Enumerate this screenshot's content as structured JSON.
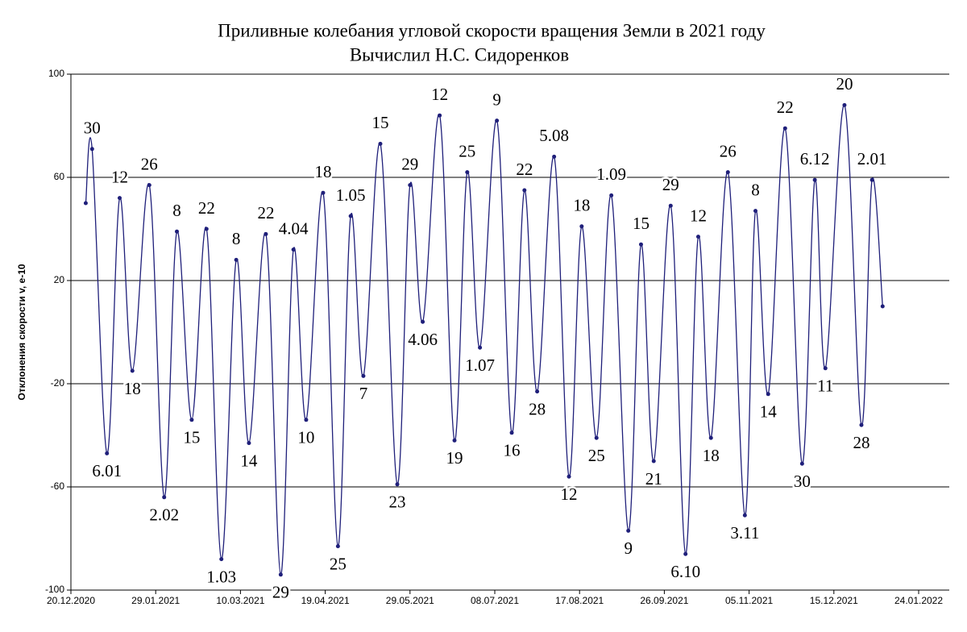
{
  "chart_data": {
    "type": "line",
    "title": "Приливные колебания угловой скорости вращения Земли в 2021 году",
    "subtitle": "Вычислил  Н.С. Сидоренков",
    "y_label": "Отклонения скорости v, е-10",
    "x": [
      "2020-12-27",
      "2020-12-30",
      "2021-01-06",
      "2021-01-12",
      "2021-01-18",
      "2021-01-26",
      "2021-02-02",
      "2021-02-08",
      "2021-02-15",
      "2021-02-22",
      "2021-03-01",
      "2021-03-08",
      "2021-03-14",
      "2021-03-22",
      "2021-03-29",
      "2021-04-04",
      "2021-04-10",
      "2021-04-18",
      "2021-04-25",
      "2021-05-01",
      "2021-05-07",
      "2021-05-15",
      "2021-05-23",
      "2021-05-29",
      "2021-06-04",
      "2021-06-12",
      "2021-06-19",
      "2021-06-25",
      "2021-07-01",
      "2021-07-09",
      "2021-07-16",
      "2021-07-22",
      "2021-07-28",
      "2021-08-05",
      "2021-08-12",
      "2021-08-18",
      "2021-08-25",
      "2021-09-01",
      "2021-09-09",
      "2021-09-15",
      "2021-09-21",
      "2021-09-29",
      "2021-10-06",
      "2021-10-12",
      "2021-10-18",
      "2021-10-26",
      "2021-11-03",
      "2021-11-08",
      "2021-11-14",
      "2021-11-22",
      "2021-11-30",
      "2021-12-06",
      "2021-12-11",
      "2021-12-20",
      "2021-12-28",
      "2022-01-02",
      "2022-01-07"
    ],
    "series": [
      {
        "name": "v",
        "color": "#1f1f7a",
        "values": [
          50,
          71,
          -47,
          52,
          -15,
          57,
          -64,
          39,
          -34,
          40,
          -88,
          28,
          -43,
          38,
          -94,
          32,
          -34,
          54,
          -83,
          45,
          -17,
          73,
          -59,
          57,
          4,
          84,
          -42,
          62,
          -6,
          82,
          -39,
          55,
          -23,
          68,
          -56,
          41,
          -41,
          53,
          -77,
          34,
          -50,
          49,
          -86,
          37,
          -41,
          62,
          -71,
          47,
          -24,
          79,
          -51,
          59,
          -14,
          88,
          -36,
          59,
          10
        ]
      }
    ],
    "point_labels": [
      null,
      "30",
      "6.01",
      "12",
      "18",
      "26",
      "2.02",
      "8",
      "15",
      "22",
      "1.03",
      "8",
      "14",
      "22",
      "29",
      "4.04",
      "10",
      "18",
      "25",
      "1.05",
      "7",
      "15",
      "23",
      "29",
      "4.06",
      "12",
      "19",
      "25",
      "1.07",
      "9",
      "16",
      "22",
      "28",
      "5.08",
      "12",
      "18",
      "25",
      "1.09",
      "9",
      "15",
      "21",
      "29",
      "6.10",
      "12",
      "18",
      "26",
      "3.11",
      "8",
      "14",
      "22",
      "30",
      "6.12",
      "11",
      "20",
      "28",
      "2.01",
      null
    ],
    "xlim": [
      "2020-12-20",
      "2022-01-24"
    ],
    "xticks": [
      {
        "value": "2020-12-20",
        "label": "20.12.2020"
      },
      {
        "value": "2021-01-29",
        "label": "29.01.2021"
      },
      {
        "value": "2021-03-10",
        "label": "10.03.2021"
      },
      {
        "value": "2021-04-19",
        "label": "19.04.2021"
      },
      {
        "value": "2021-05-29",
        "label": "29.05.2021"
      },
      {
        "value": "2021-07-08",
        "label": "08.07.2021"
      },
      {
        "value": "2021-08-17",
        "label": "17.08.2021"
      },
      {
        "value": "2021-09-26",
        "label": "26.09.2021"
      },
      {
        "value": "2021-11-05",
        "label": "05.11.2021"
      },
      {
        "value": "2021-12-15",
        "label": "15.12.2021"
      },
      {
        "value": "2022-01-24",
        "label": "24.01.2022"
      }
    ],
    "ylim": [
      -100,
      100
    ],
    "yticks": [
      -100,
      -60,
      -20,
      20,
      60,
      100
    ],
    "grid": true
  }
}
